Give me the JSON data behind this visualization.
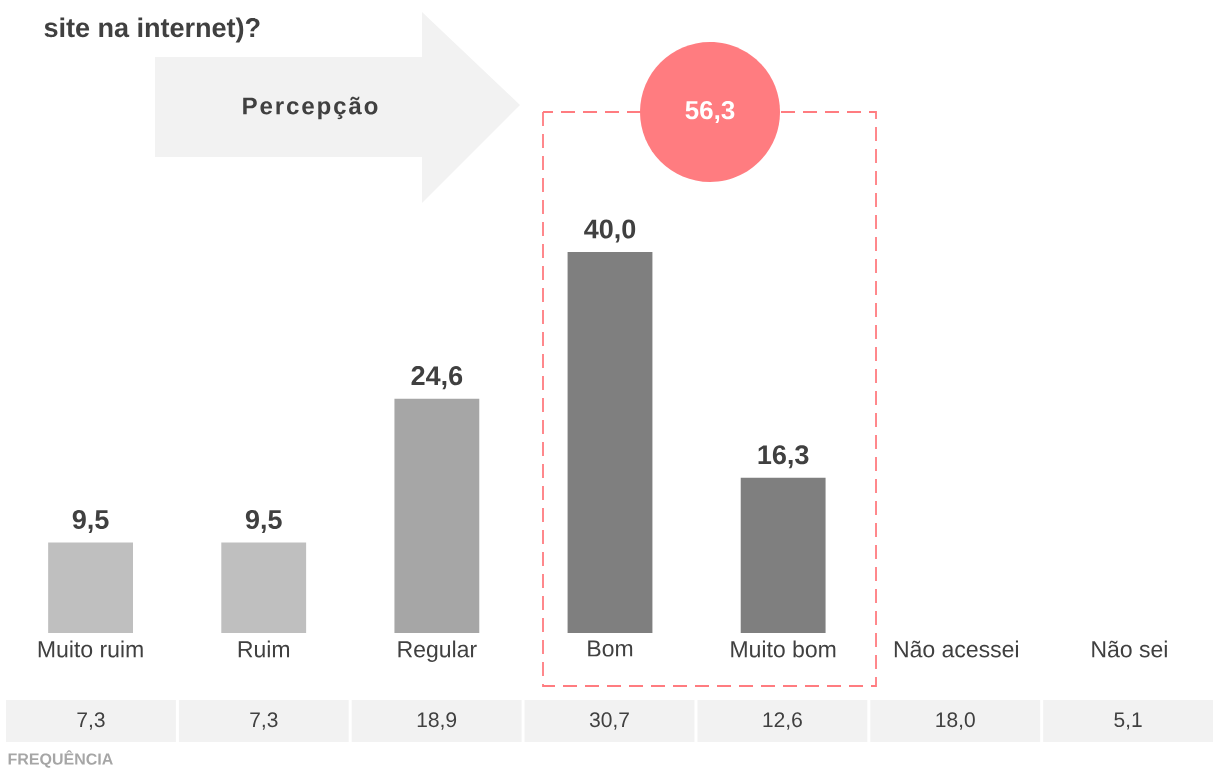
{
  "chart_data": {
    "type": "bar",
    "title": "site na internet)?",
    "categories": [
      "Muito ruim",
      "Ruim",
      "Regular",
      "Bom",
      "Muito bom",
      "Não acessei",
      "Não sei"
    ],
    "values": [
      9.5,
      9.5,
      24.6,
      40.0,
      16.3,
      null,
      null
    ],
    "value_labels": [
      "9,5",
      "9,5",
      "24,6",
      "40,0",
      "16,3",
      null,
      null
    ],
    "colors": [
      "#bfbfbf",
      "#bfbfbf",
      "#a6a6a6",
      "#7f7f7f",
      "#7f7f7f",
      null,
      null
    ],
    "annotations": [
      "Percepção",
      "56,3",
      "7,3",
      "7,3",
      "18,9",
      "30,7",
      "12,6",
      "18,0",
      "5,1",
      "FREQUÊNCIA"
    ]
  }
}
